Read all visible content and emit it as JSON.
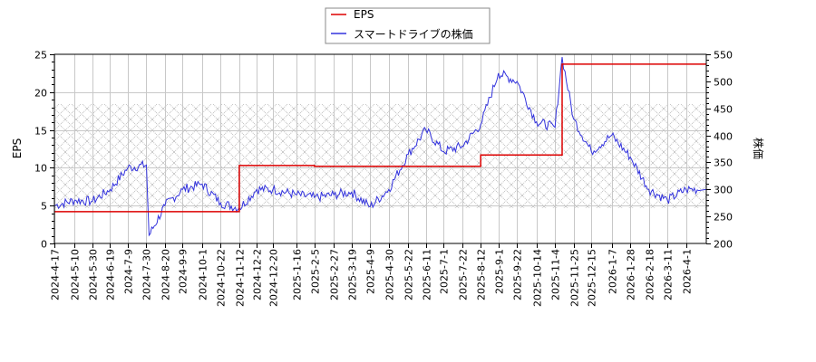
{
  "chart_data": {
    "type": "line",
    "title": "",
    "legend": {
      "position": "top-center",
      "entries": [
        {
          "label": "EPS",
          "color": "#dd0000"
        },
        {
          "label": "スマートドライブの株価",
          "color": "#3333dd"
        }
      ]
    },
    "x_axis": {
      "label": "",
      "tick_labels": [
        "2024-4-17",
        "2024-5-10",
        "2024-5-30",
        "2024-6-19",
        "2024-7-9",
        "2024-7-30",
        "2024-8-20",
        "2024-9-9",
        "2024-10-1",
        "2024-10-22",
        "2024-11-12",
        "2024-12-2",
        "2024-12-20",
        "2025-1-16",
        "2025-2-5",
        "2025-2-27",
        "2025-3-19",
        "2025-4-9",
        "2025-4-30",
        "2025-5-22",
        "2025-6-11",
        "2025-7-1",
        "2025-7-22",
        "2025-8-12",
        "2025-9-1",
        "2025-9-22",
        "2025-10-14",
        "2025-11-4",
        "2025-11-25",
        "2025-12-15",
        "2026-1-7",
        "2026-1-28",
        "2026-2-18",
        "2026-3-11",
        "2026-4-1"
      ]
    },
    "y_axis_left": {
      "label": "EPS",
      "ylim": [
        0,
        25
      ],
      "ticks": [
        0,
        5,
        10,
        15,
        20,
        25
      ]
    },
    "y_axis_right": {
      "label": "株価",
      "ylim": [
        200,
        550
      ],
      "ticks": [
        200,
        250,
        300,
        350,
        400,
        450,
        500,
        550
      ]
    },
    "grid": true,
    "shaded_band": {
      "price_range": [
        266,
        455
      ],
      "eps_range": [
        4.7,
        18.5
      ],
      "style": "crosshatch"
    },
    "series": [
      {
        "name": "EPS",
        "axis": "left",
        "color": "#dd0000",
        "step": true,
        "x": [
          "2024-4-17",
          "2024-11-12",
          "2025-2-5",
          "2025-8-12",
          "2025-11-12",
          "2026-4-17"
        ],
        "values": [
          4.2,
          10.3,
          10.2,
          11.7,
          23.7,
          23.7
        ]
      },
      {
        "name": "スマートドライブの株価",
        "axis": "right",
        "color": "#3333dd",
        "x": [
          "2024-4-17",
          "2024-5-10",
          "2024-5-30",
          "2024-6-19",
          "2024-7-9",
          "2024-7-30",
          "2024-8-2",
          "2024-8-20",
          "2024-9-9",
          "2024-10-1",
          "2024-10-22",
          "2024-11-12",
          "2024-12-2",
          "2024-12-20",
          "2025-1-16",
          "2025-2-5",
          "2025-2-27",
          "2025-3-19",
          "2025-4-9",
          "2025-4-30",
          "2025-5-22",
          "2025-6-11",
          "2025-7-1",
          "2025-7-22",
          "2025-8-12",
          "2025-9-1",
          "2025-9-22",
          "2025-10-14",
          "2025-11-4",
          "2025-11-12",
          "2025-11-25",
          "2025-12-15",
          "2026-1-7",
          "2026-1-28",
          "2026-2-18",
          "2026-3-11",
          "2026-4-1",
          "2026-4-17"
        ],
        "values": [
          270,
          280,
          278,
          300,
          340,
          345,
          215,
          270,
          300,
          310,
          275,
          265,
          300,
          300,
          290,
          285,
          290,
          295,
          268,
          300,
          365,
          410,
          370,
          380,
          420,
          515,
          500,
          425,
          415,
          545,
          430,
          370,
          400,
          360,
          300,
          280,
          300,
          300
        ]
      }
    ]
  }
}
